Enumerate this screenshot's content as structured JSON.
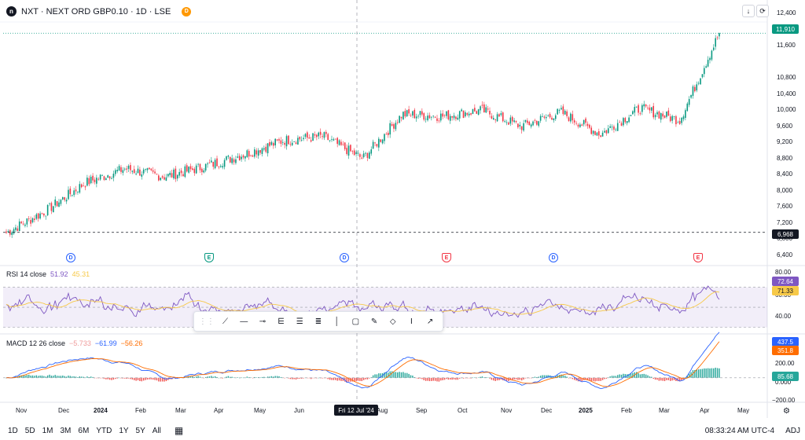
{
  "header": {
    "logo_text": "n",
    "symbol_title": "NXT · NEXT ORD GBP0.10 · 1D · LSE",
    "data_badge": "D"
  },
  "toolbar_right": {
    "download_icon": "arrow-down-icon",
    "refresh_icon": "refresh-icon",
    "download_glyph": "↓",
    "refresh_glyph": "⟳"
  },
  "colors": {
    "up": "#089981",
    "down": "#f23645",
    "rsi": "#7e57c2",
    "rsi_ma": "#f7c948",
    "macd": "#2962ff",
    "signal": "#ff6d00",
    "hist_up": "#26a69a",
    "hist_down": "#ef5350"
  },
  "price_axis": {
    "ticks": [
      "12,400",
      "12,000",
      "11,600",
      "10,800",
      "10,400",
      "10,000",
      "9,600",
      "9,200",
      "8,800",
      "8,400",
      "8,000",
      "7,600",
      "7,200",
      "6,800",
      "6,400"
    ],
    "last_price": "11,910",
    "low_marker": "6,968"
  },
  "rsi_pane": {
    "label": "RSI 14 close",
    "value": "51.92",
    "ma_value": "45.31",
    "ticks": [
      "80.00",
      "60.00",
      "40.00"
    ],
    "badge_rsi": "72.64",
    "badge_ma": "71.33"
  },
  "macd_pane": {
    "label": "MACD 12 26 close",
    "hist_value": "−5.733",
    "macd_value": "−61.99",
    "signal_value": "−56.26",
    "ticks": [
      "200.00",
      "0.000",
      "−200.00"
    ],
    "badge_macd": "437.5",
    "badge_signal": "351.8",
    "badge_hist": "85.68"
  },
  "events": [
    {
      "type": "D",
      "kind": "div"
    },
    {
      "type": "E",
      "kind": "earn-up"
    },
    {
      "type": "D",
      "kind": "div"
    },
    {
      "type": "E",
      "kind": "earn-down"
    },
    {
      "type": "D",
      "kind": "div"
    },
    {
      "type": "E",
      "kind": "earn-down"
    }
  ],
  "time_axis": [
    "Nov",
    "Dec",
    "2024",
    "Feb",
    "Mar",
    "Apr",
    "May",
    "Jun",
    "Aug",
    "Sep",
    "Oct",
    "Nov",
    "Dec",
    "2025",
    "Feb",
    "Mar",
    "Apr",
    "May"
  ],
  "crosshair_date": "Fri 12 Jul '24",
  "drawing_tools": [
    "drag-handle-icon",
    "trend-line-icon",
    "ray-icon",
    "horizontal-line-icon",
    "parallel-channel-icon",
    "regression-icon",
    "fib-icon",
    "vertical-line-icon",
    "rectangle-icon",
    "brush-icon",
    "polygon-icon",
    "measure-icon",
    "arrow-line-icon"
  ],
  "bottom_bar": {
    "periods": [
      "1D",
      "5D",
      "1M",
      "3M",
      "6M",
      "YTD",
      "1Y",
      "5Y",
      "All"
    ],
    "calendar_icon": "calendar-icon",
    "clock": "08:33:24 AM UTC-4",
    "adj": "ADJ"
  },
  "chart_data": {
    "type": "candlestick",
    "title": "",
    "price_range": [
      6300,
      12500
    ],
    "x_start": "2023-10-24",
    "x_end": "2025-05-20",
    "monthly_closes": [
      {
        "month": "2023-11",
        "close": 7500
      },
      {
        "month": "2023-12",
        "close": 8200
      },
      {
        "month": "2024-01",
        "close": 8550
      },
      {
        "month": "2024-02",
        "close": 8350
      },
      {
        "month": "2024-03",
        "close": 8600
      },
      {
        "month": "2024-04",
        "close": 8900
      },
      {
        "month": "2024-05",
        "close": 9250
      },
      {
        "month": "2024-06",
        "close": 9350
      },
      {
        "month": "2024-07",
        "close": 8800
      },
      {
        "month": "2024-08",
        "close": 9900
      },
      {
        "month": "2024-09",
        "close": 9850
      },
      {
        "month": "2024-10",
        "close": 10000
      },
      {
        "month": "2024-11",
        "close": 9600
      },
      {
        "month": "2024-12",
        "close": 9950
      },
      {
        "month": "2025-01",
        "close": 9400
      },
      {
        "month": "2025-02",
        "close": 10050
      },
      {
        "month": "2025-03",
        "close": 9750
      },
      {
        "month": "2025-04",
        "close": 11910
      }
    ],
    "rsi_range": [
      25,
      90
    ],
    "macd_range": [
      -260,
      480
    ]
  }
}
